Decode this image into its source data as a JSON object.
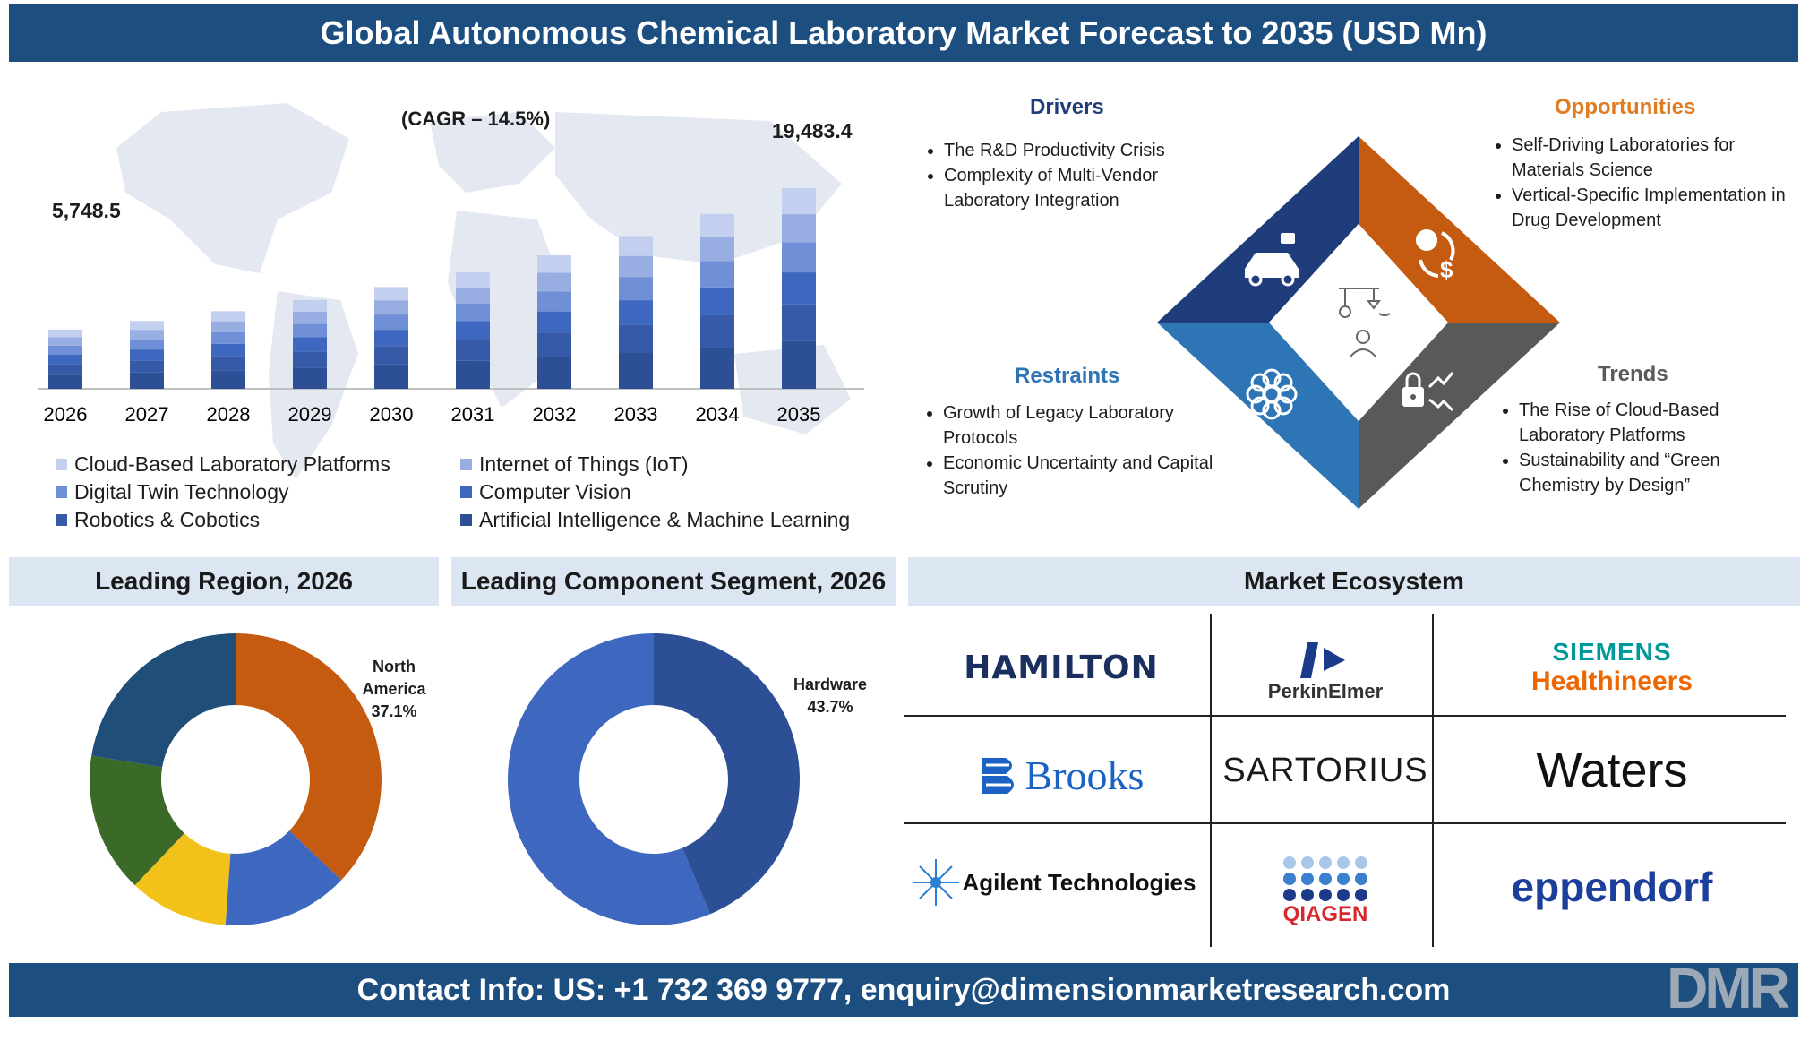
{
  "title": "Global Autonomous Chemical Laboratory Market Forecast to 2035 (USD Mn)",
  "footer": "Contact Info: US: +1 732 369 9777, enquiry@dimensionmarketresearch.com",
  "footer_logo": "DMR",
  "cagr_label": "(CAGR – 14.5%)",
  "first_value_label": "5,748.5",
  "last_value_label": "19,483.4",
  "chart_data": [
    {
      "type": "bar",
      "stacked": true,
      "categories": [
        "2026",
        "2027",
        "2028",
        "2029",
        "2030",
        "2031",
        "2032",
        "2033",
        "2034",
        "2035"
      ],
      "totals": [
        5748.5,
        6582,
        7536,
        8629,
        9880,
        11312,
        12953,
        14831,
        16981,
        19483.4
      ],
      "series": [
        {
          "name": "Artificial Intelligence & Machine Learning",
          "color": "#2c4f96",
          "share": 0.24
        },
        {
          "name": "Robotics & Cobotics",
          "color": "#3659a8",
          "share": 0.18
        },
        {
          "name": "Computer Vision",
          "color": "#3e68bf",
          "share": 0.16
        },
        {
          "name": "Digital Twin Technology",
          "color": "#6f8fd6",
          "share": 0.15
        },
        {
          "name": "Internet of Things (IoT)",
          "color": "#98aee3",
          "share": 0.14
        },
        {
          "name": "Cloud-Based Laboratory Platforms",
          "color": "#c2cfee",
          "share": 0.13
        }
      ],
      "legend": [
        "Cloud-Based Laboratory Platforms",
        "Internet of Things (IoT)",
        "Digital Twin Technology",
        "Computer Vision",
        "Robotics & Cobotics",
        "Artificial Intelligence & Machine Learning"
      ],
      "legend_placement": "bottom"
    },
    {
      "type": "pie",
      "title": "Leading Region, 2026",
      "slices": [
        {
          "name": "North America",
          "value": 37.1,
          "color": "#c55a11",
          "labelled": true
        },
        {
          "name": "",
          "value": 14.0,
          "color": "#3e68bf"
        },
        {
          "name": "",
          "value": 11.0,
          "color": "#f2c21b"
        },
        {
          "name": "",
          "value": 15.5,
          "color": "#3b6a28"
        },
        {
          "name": "",
          "value": 22.4,
          "color": "#1f4e79"
        }
      ],
      "label_name_lines": [
        "North",
        "America"
      ],
      "label_value": "37.1%"
    },
    {
      "type": "pie",
      "title": "Leading Component Segment, 2026",
      "slices": [
        {
          "name": "Hardware",
          "value": 43.7,
          "color": "#2c4f96",
          "labelled": true
        },
        {
          "name": "",
          "value": 56.3,
          "color": "#3e68bf"
        }
      ],
      "label_name": "Hardware",
      "label_value": "43.7%"
    }
  ],
  "sections": {
    "region": "Leading Region, 2026",
    "component": "Leading Component Segment, 2026",
    "ecosystem": "Market Ecosystem"
  },
  "quadrants": {
    "drivers": {
      "title": "Drivers",
      "color": "#1f3d7a",
      "items": [
        "The R&D Productivity Crisis",
        "Complexity of Multi-Vendor Laboratory Integration"
      ]
    },
    "opportunities": {
      "title": "Opportunities",
      "color": "#e07b1f",
      "items": [
        "Self-Driving Laboratories for Materials Science",
        "Vertical-Specific Implementation in Drug Development"
      ]
    },
    "restraints": {
      "title": "Restraints",
      "color": "#2e75b6",
      "items": [
        "Growth of Legacy Laboratory Protocols",
        "Economic Uncertainty and Capital Scrutiny"
      ]
    },
    "trends": {
      "title": "Trends",
      "color": "#595959",
      "items": [
        "The Rise of Cloud-Based Laboratory Platforms",
        "Sustainability and “Green Chemistry by Design”"
      ]
    }
  },
  "diamond_colors": {
    "top_left": "#1f3d7a",
    "top_right": "#c55a11",
    "bottom_left": "#2e75b6",
    "bottom_right": "#595959"
  },
  "ecosystem": {
    "hamilton": "HAMILTON",
    "perkinelmer": "PerkinElmer",
    "siemens_top": "SIEMENS",
    "siemens_bottom": "Healthineers",
    "brooks": "Brooks",
    "sartorius": "SARTORIUS",
    "waters": "Waters",
    "agilent": "Agilent Technologies",
    "qiagen": "QIAGEN",
    "eppendorf": "eppendorf"
  }
}
